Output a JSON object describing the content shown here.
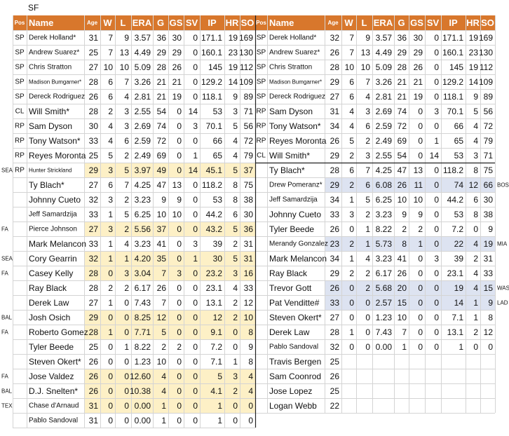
{
  "title": "SF",
  "tables": [
    {
      "header": [
        "Pos",
        "Name",
        "Age",
        "W",
        "L",
        "ERA",
        "G",
        "GS",
        "SV",
        "IP",
        "HR",
        "SO"
      ],
      "highlight_color": "#fdf0c6",
      "rows": [
        {
          "pos": "SP",
          "name": "Derek Holland*",
          "stats": [
            "31",
            "7",
            "9",
            "3.57",
            "36",
            "30",
            "0",
            "171.1",
            "19",
            "169"
          ]
        },
        {
          "pos": "SP",
          "name": "Andrew Suarez*",
          "stats": [
            "25",
            "7",
            "13",
            "4.49",
            "29",
            "29",
            "0",
            "160.1",
            "23",
            "130"
          ]
        },
        {
          "pos": "SP",
          "name": "Chris Stratton",
          "stats": [
            "27",
            "10",
            "10",
            "5.09",
            "28",
            "26",
            "0",
            "145",
            "19",
            "112"
          ]
        },
        {
          "pos": "SP",
          "name": "Madison Bumgarner*",
          "stats": [
            "28",
            "6",
            "7",
            "3.26",
            "21",
            "21",
            "0",
            "129.2",
            "14",
            "109"
          ]
        },
        {
          "pos": "SP",
          "name": "Dereck Rodriguez",
          "stats": [
            "26",
            "6",
            "4",
            "2.81",
            "21",
            "19",
            "0",
            "118.1",
            "9",
            "89"
          ]
        },
        {
          "pos": "CL",
          "name": "Will Smith*",
          "stats": [
            "28",
            "2",
            "3",
            "2.55",
            "54",
            "0",
            "14",
            "53",
            "3",
            "71"
          ]
        },
        {
          "pos": "RP",
          "name": "Sam Dyson",
          "stats": [
            "30",
            "4",
            "3",
            "2.69",
            "74",
            "0",
            "3",
            "70.1",
            "5",
            "56"
          ]
        },
        {
          "pos": "RP",
          "name": "Tony Watson*",
          "stats": [
            "33",
            "4",
            "6",
            "2.59",
            "72",
            "0",
            "0",
            "66",
            "4",
            "72"
          ]
        },
        {
          "pos": "RP",
          "name": "Reyes Moronta",
          "stats": [
            "25",
            "5",
            "2",
            "2.49",
            "69",
            "0",
            "1",
            "65",
            "4",
            "79"
          ]
        },
        {
          "tag": "SEA",
          "pos": "RP",
          "name": "Hunter Strickland",
          "highlighted": true,
          "stats": [
            "29",
            "3",
            "5",
            "3.97",
            "49",
            "0",
            "14",
            "45.1",
            "5",
            "37"
          ]
        },
        {
          "name": "Ty Blach*",
          "stats": [
            "27",
            "6",
            "7",
            "4.25",
            "47",
            "13",
            "0",
            "118.2",
            "8",
            "75"
          ]
        },
        {
          "name": "Johnny Cueto",
          "stats": [
            "32",
            "3",
            "2",
            "3.23",
            "9",
            "9",
            "0",
            "53",
            "8",
            "38"
          ]
        },
        {
          "name": "Jeff Samardzija",
          "stats": [
            "33",
            "1",
            "5",
            "6.25",
            "10",
            "10",
            "0",
            "44.2",
            "6",
            "30"
          ]
        },
        {
          "tag": "FA",
          "name": "Pierce Johnson",
          "highlighted": true,
          "stats": [
            "27",
            "3",
            "2",
            "5.56",
            "37",
            "0",
            "0",
            "43.2",
            "5",
            "36"
          ]
        },
        {
          "name": "Mark Melancon",
          "stats": [
            "33",
            "1",
            "4",
            "3.23",
            "41",
            "0",
            "3",
            "39",
            "2",
            "31"
          ]
        },
        {
          "tag": "SEA",
          "name": "Cory Gearrin",
          "highlighted": true,
          "stats": [
            "32",
            "1",
            "1",
            "4.20",
            "35",
            "0",
            "1",
            "30",
            "5",
            "31"
          ]
        },
        {
          "tag": "FA",
          "name": "Casey Kelly",
          "highlighted": true,
          "stats": [
            "28",
            "0",
            "3",
            "3.04",
            "7",
            "3",
            "0",
            "23.2",
            "3",
            "16"
          ]
        },
        {
          "name": "Ray Black",
          "stats": [
            "28",
            "2",
            "2",
            "6.17",
            "26",
            "0",
            "0",
            "23.1",
            "4",
            "33"
          ]
        },
        {
          "name": "Derek Law",
          "stats": [
            "27",
            "1",
            "0",
            "7.43",
            "7",
            "0",
            "0",
            "13.1",
            "2",
            "12"
          ]
        },
        {
          "tag": "BAL",
          "name": "Josh Osich",
          "highlighted": true,
          "stats": [
            "29",
            "0",
            "0",
            "8.25",
            "12",
            "0",
            "0",
            "12",
            "2",
            "10"
          ]
        },
        {
          "tag": "FA",
          "name": "Roberto Gomez",
          "highlighted": true,
          "stats": [
            "28",
            "1",
            "0",
            "7.71",
            "5",
            "0",
            "0",
            "9.1",
            "0",
            "8"
          ]
        },
        {
          "name": "Tyler Beede",
          "stats": [
            "25",
            "0",
            "1",
            "8.22",
            "2",
            "2",
            "0",
            "7.2",
            "0",
            "9"
          ]
        },
        {
          "name": "Steven Okert*",
          "stats": [
            "26",
            "0",
            "0",
            "1.23",
            "10",
            "0",
            "0",
            "7.1",
            "1",
            "8"
          ]
        },
        {
          "tag": "FA",
          "name": "Jose Valdez",
          "highlighted": true,
          "stats": [
            "26",
            "0",
            "0",
            "12.60",
            "4",
            "0",
            "0",
            "5",
            "3",
            "4"
          ]
        },
        {
          "tag": "BAL",
          "name": "D.J. Snelten*",
          "highlighted": true,
          "stats": [
            "26",
            "0",
            "0",
            "10.38",
            "4",
            "0",
            "0",
            "4.1",
            "2",
            "4"
          ]
        },
        {
          "tag": "TEX",
          "name": "Chase d'Arnaud",
          "highlighted": true,
          "stats": [
            "31",
            "0",
            "0",
            "0.00",
            "1",
            "0",
            "0",
            "1",
            "0",
            "0"
          ]
        },
        {
          "name": "Pablo Sandoval",
          "stats": [
            "31",
            "0",
            "0",
            "0.00",
            "1",
            "0",
            "0",
            "1",
            "0",
            "0"
          ]
        }
      ]
    },
    {
      "header": [
        "Pos",
        "Name",
        "Age",
        "W",
        "L",
        "ERA",
        "G",
        "GS",
        "SV",
        "IP",
        "HR",
        "SO"
      ],
      "highlight_color": "#dde3f1",
      "rows": [
        {
          "pos": "SP",
          "name": "Derek Holland*",
          "stats": [
            "32",
            "7",
            "9",
            "3.57",
            "36",
            "30",
            "0",
            "171.1",
            "19",
            "169"
          ]
        },
        {
          "pos": "SP",
          "name": "Andrew Suarez*",
          "stats": [
            "26",
            "7",
            "13",
            "4.49",
            "29",
            "29",
            "0",
            "160.1",
            "23",
            "130"
          ]
        },
        {
          "pos": "SP",
          "name": "Chris Stratton",
          "stats": [
            "28",
            "10",
            "10",
            "5.09",
            "28",
            "26",
            "0",
            "145",
            "19",
            "112"
          ]
        },
        {
          "pos": "SP",
          "name": "Madison Bumgarner*",
          "stats": [
            "29",
            "6",
            "7",
            "3.26",
            "21",
            "21",
            "0",
            "129.2",
            "14",
            "109"
          ]
        },
        {
          "pos": "SP",
          "name": "Dereck Rodriguez",
          "stats": [
            "27",
            "6",
            "4",
            "2.81",
            "21",
            "19",
            "0",
            "118.1",
            "9",
            "89"
          ]
        },
        {
          "pos": "RP",
          "name": "Sam Dyson",
          "stats": [
            "31",
            "4",
            "3",
            "2.69",
            "74",
            "0",
            "3",
            "70.1",
            "5",
            "56"
          ]
        },
        {
          "pos": "RP",
          "name": "Tony Watson*",
          "stats": [
            "34",
            "4",
            "6",
            "2.59",
            "72",
            "0",
            "0",
            "66",
            "4",
            "72"
          ]
        },
        {
          "pos": "RP",
          "name": "Reyes Moronta",
          "stats": [
            "26",
            "5",
            "2",
            "2.49",
            "69",
            "0",
            "1",
            "65",
            "4",
            "79"
          ]
        },
        {
          "pos": "CL",
          "name": "Will Smith*",
          "stats": [
            "29",
            "2",
            "3",
            "2.55",
            "54",
            "0",
            "14",
            "53",
            "3",
            "71"
          ]
        },
        {
          "name": "Ty Blach*",
          "stats": [
            "28",
            "6",
            "7",
            "4.25",
            "47",
            "13",
            "0",
            "118.2",
            "8",
            "75"
          ]
        },
        {
          "tag": "BOS",
          "name": "Drew Pomeranz*",
          "highlighted": true,
          "stats": [
            "29",
            "2",
            "6",
            "6.08",
            "26",
            "11",
            "0",
            "74",
            "12",
            "66"
          ]
        },
        {
          "name": "Jeff Samardzija",
          "stats": [
            "34",
            "1",
            "5",
            "6.25",
            "10",
            "10",
            "0",
            "44.2",
            "6",
            "30"
          ]
        },
        {
          "name": "Johnny Cueto",
          "stats": [
            "33",
            "3",
            "2",
            "3.23",
            "9",
            "9",
            "0",
            "53",
            "8",
            "38"
          ]
        },
        {
          "name": "Tyler Beede",
          "stats": [
            "26",
            "0",
            "1",
            "8.22",
            "2",
            "2",
            "0",
            "7.2",
            "0",
            "9"
          ]
        },
        {
          "tag": "MIA",
          "name": "Merandy Gonzalez",
          "highlighted": true,
          "stats": [
            "23",
            "2",
            "1",
            "5.73",
            "8",
            "1",
            "0",
            "22",
            "4",
            "19"
          ]
        },
        {
          "name": "Mark Melancon",
          "stats": [
            "34",
            "1",
            "4",
            "3.23",
            "41",
            "0",
            "3",
            "39",
            "2",
            "31"
          ]
        },
        {
          "name": "Ray Black",
          "stats": [
            "29",
            "2",
            "2",
            "6.17",
            "26",
            "0",
            "0",
            "23.1",
            "4",
            "33"
          ]
        },
        {
          "tag": "WAS",
          "name": "Trevor Gott",
          "highlighted": true,
          "stats": [
            "26",
            "0",
            "2",
            "5.68",
            "20",
            "0",
            "0",
            "19",
            "4",
            "15"
          ]
        },
        {
          "tag": "LAD",
          "name": "Pat Venditte#",
          "highlighted": true,
          "stats": [
            "33",
            "0",
            "0",
            "2.57",
            "15",
            "0",
            "0",
            "14",
            "1",
            "9"
          ]
        },
        {
          "name": "Steven Okert*",
          "stats": [
            "27",
            "0",
            "0",
            "1.23",
            "10",
            "0",
            "0",
            "7.1",
            "1",
            "8"
          ]
        },
        {
          "name": "Derek Law",
          "stats": [
            "28",
            "1",
            "0",
            "7.43",
            "7",
            "0",
            "0",
            "13.1",
            "2",
            "12"
          ]
        },
        {
          "name": "Pablo Sandoval",
          "stats": [
            "32",
            "0",
            "0",
            "0.00",
            "1",
            "0",
            "0",
            "1",
            "0",
            "0"
          ]
        },
        {
          "name": "Travis Bergen",
          "stats": [
            "25"
          ]
        },
        {
          "name": "Sam Coonrod",
          "stats": [
            "26"
          ]
        },
        {
          "name": "Jose Lopez",
          "stats": [
            "25"
          ]
        },
        {
          "name": "Logan Webb",
          "stats": [
            "22"
          ]
        }
      ]
    }
  ]
}
